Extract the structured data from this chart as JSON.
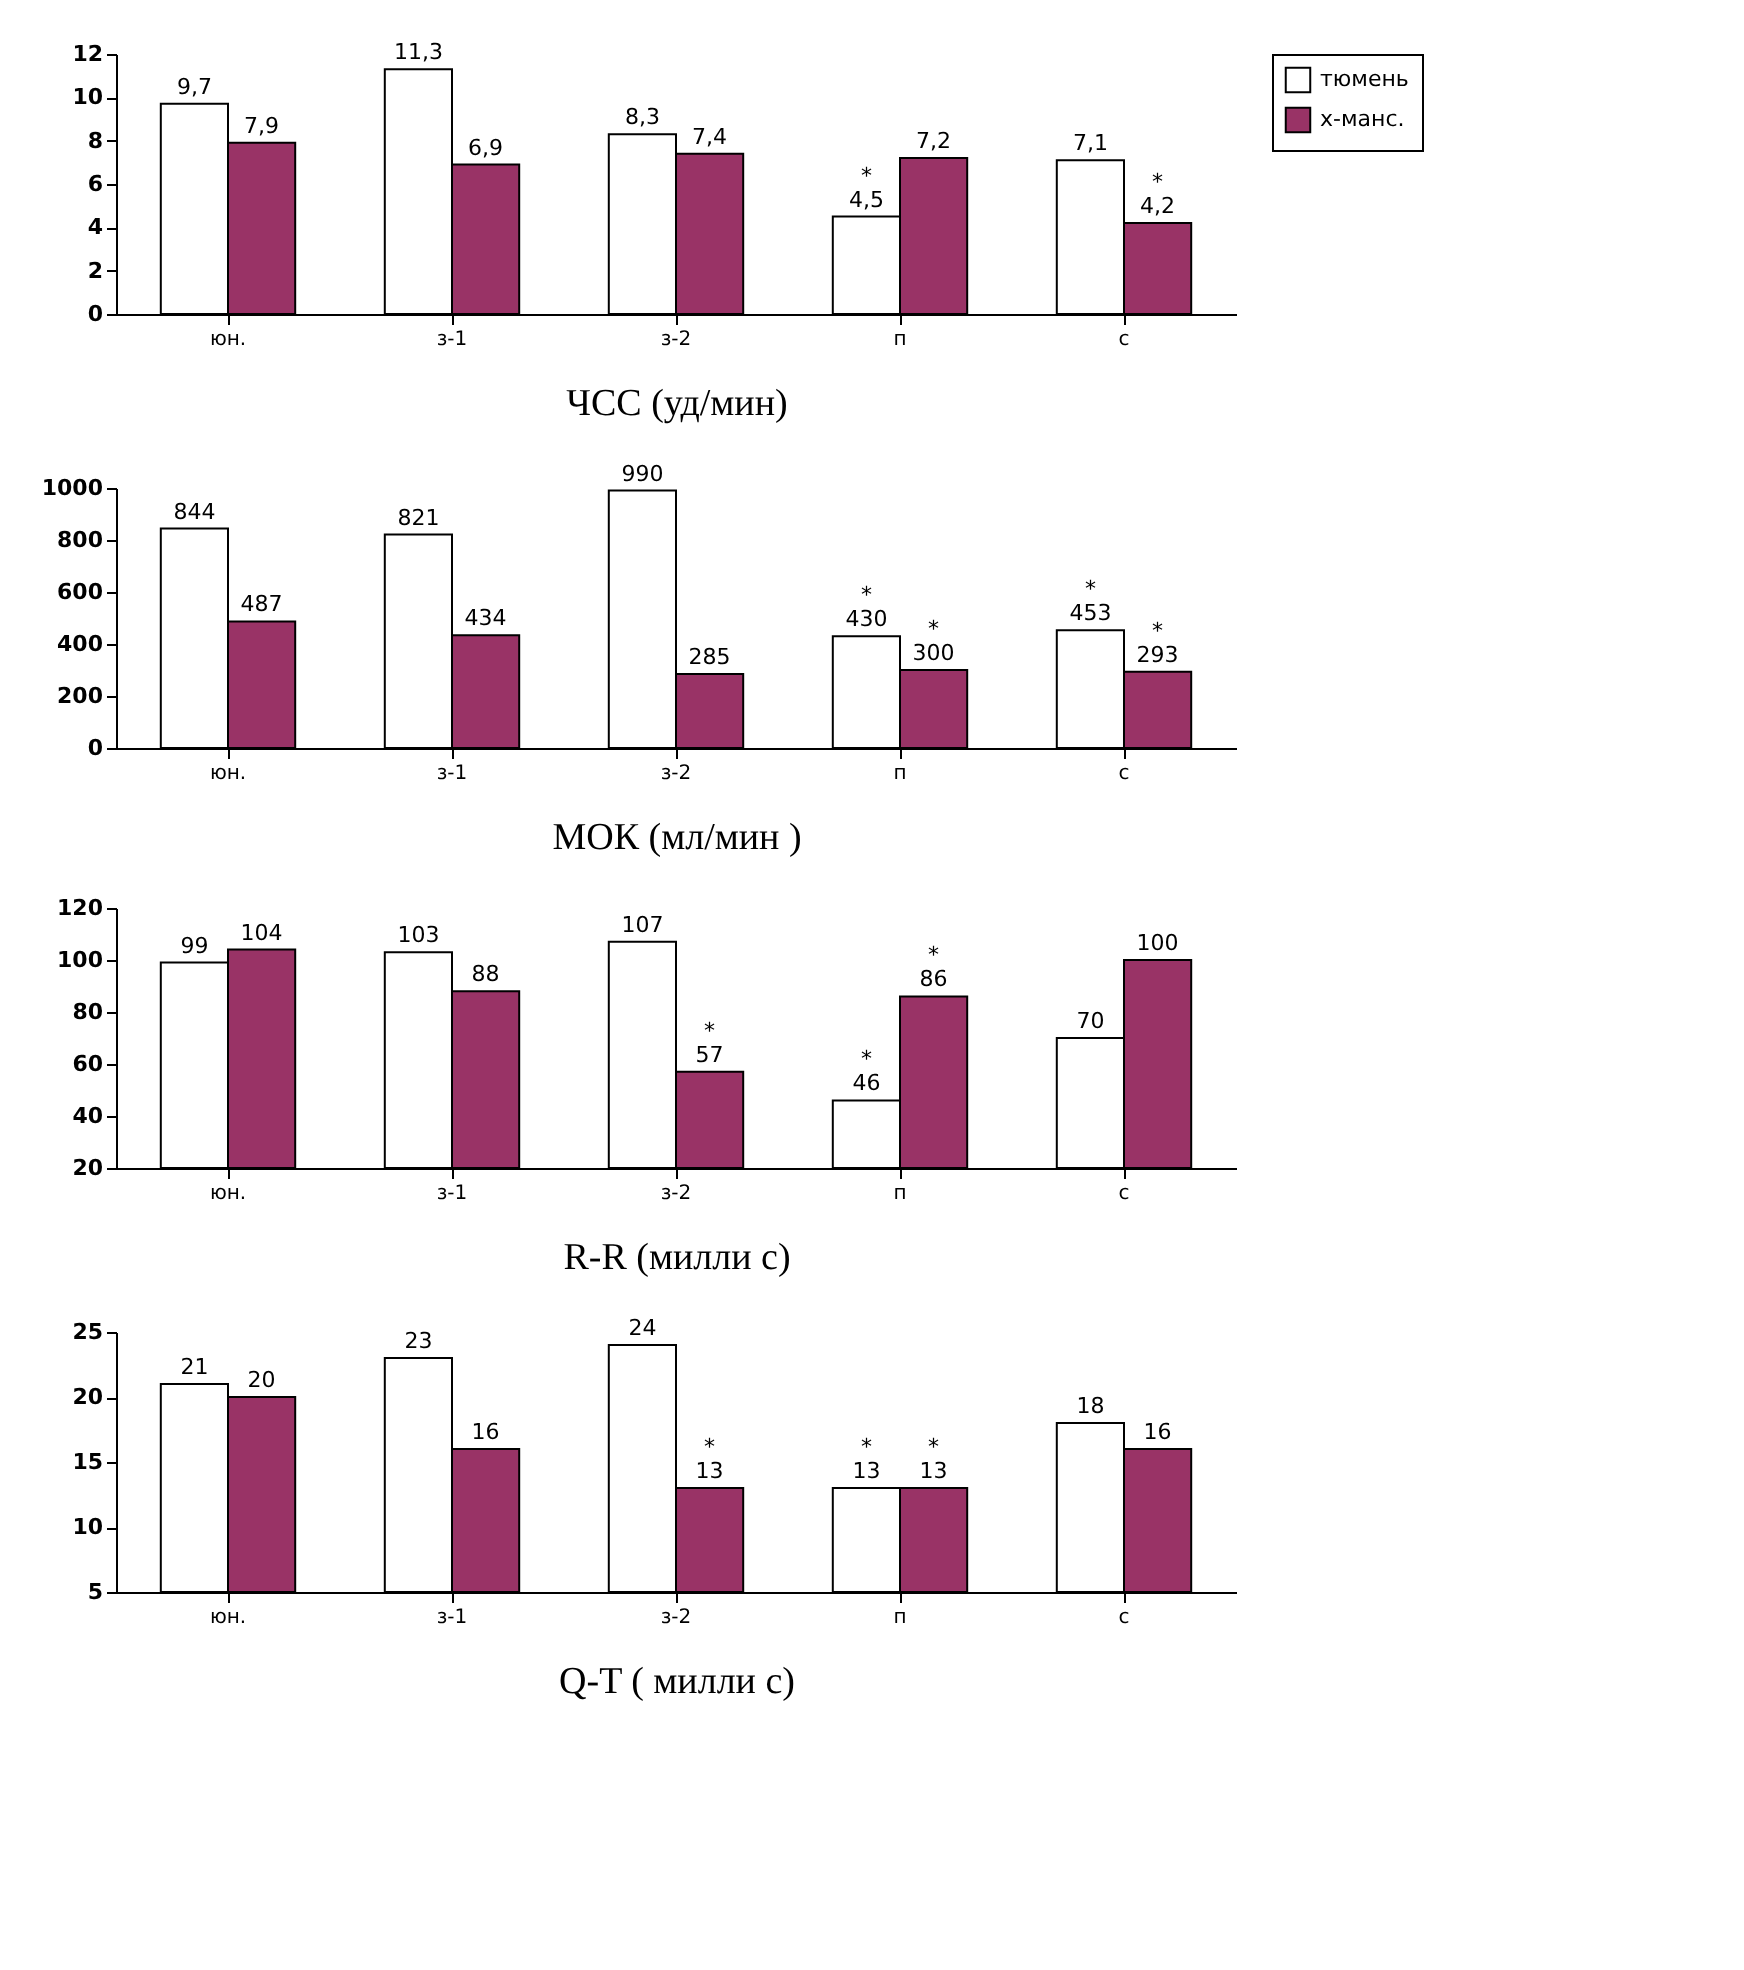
{
  "chart_data": [
    {
      "type": "bar",
      "xlabel": "ЧСС (уд/мин)",
      "categories": [
        "юн.",
        "з-1",
        "з-2",
        "п",
        "с"
      ],
      "ylim": [
        0,
        12
      ],
      "yticks": [
        0,
        2,
        4,
        6,
        8,
        10,
        12
      ],
      "legend": "right",
      "series": [
        {
          "name": "тюмень",
          "color": "#ffffff",
          "values": [
            9.7,
            11.3,
            8.3,
            4.5,
            7.1
          ],
          "value_labels": [
            "9,7",
            "11,3",
            "8,3",
            "*\n4,5",
            "7,1"
          ]
        },
        {
          "name": "х-манс.",
          "color": "#993366",
          "values": [
            7.9,
            6.9,
            7.4,
            7.2,
            4.2
          ],
          "value_labels": [
            "7,9",
            "6,9",
            "7,4",
            "7,2",
            "*\n4,2"
          ]
        }
      ]
    },
    {
      "type": "bar",
      "xlabel": "МОК (мл/мин )",
      "categories": [
        "юн.",
        "з-1",
        "з-2",
        "п",
        "с"
      ],
      "ylim": [
        0,
        1000
      ],
      "yticks": [
        0,
        200,
        400,
        600,
        800,
        1000
      ],
      "series": [
        {
          "color": "#ffffff",
          "values": [
            844,
            821,
            990,
            430,
            453
          ],
          "value_labels": [
            "844",
            "821",
            "990",
            "*\n430",
            "*\n453"
          ]
        },
        {
          "color": "#993366",
          "values": [
            487,
            434,
            285,
            300,
            293
          ],
          "value_labels": [
            "487",
            "434",
            "285",
            "*\n300",
            "*\n293"
          ]
        }
      ]
    },
    {
      "type": "bar",
      "xlabel": "R-R (милли с)",
      "categories": [
        "юн.",
        "з-1",
        "з-2",
        "п",
        "с"
      ],
      "ylim": [
        20,
        120
      ],
      "yticks": [
        20,
        40,
        60,
        80,
        100,
        120
      ],
      "series": [
        {
          "color": "#ffffff",
          "values": [
            99,
            103,
            107,
            46,
            70
          ],
          "value_labels": [
            "99",
            "103",
            "107",
            "*\n46",
            "70"
          ]
        },
        {
          "color": "#993366",
          "values": [
            104,
            88,
            57,
            86,
            100
          ],
          "value_labels": [
            "104",
            "88",
            "*\n57",
            "*\n86",
            "100"
          ]
        }
      ]
    },
    {
      "type": "bar",
      "xlabel": "Q-T ( милли с)",
      "categories": [
        "юн.",
        "з-1",
        "з-2",
        "п",
        "с"
      ],
      "ylim": [
        5,
        25
      ],
      "yticks": [
        5,
        10,
        15,
        20,
        25
      ],
      "series": [
        {
          "color": "#ffffff",
          "values": [
            21,
            23,
            24,
            13,
            18
          ],
          "value_labels": [
            "21",
            "23",
            "24",
            "*\n13",
            "18"
          ]
        },
        {
          "color": "#993366",
          "values": [
            20,
            16,
            13,
            13,
            16
          ],
          "value_labels": [
            "20",
            "16",
            "*\n13",
            "*\n13",
            "16"
          ]
        }
      ]
    }
  ]
}
